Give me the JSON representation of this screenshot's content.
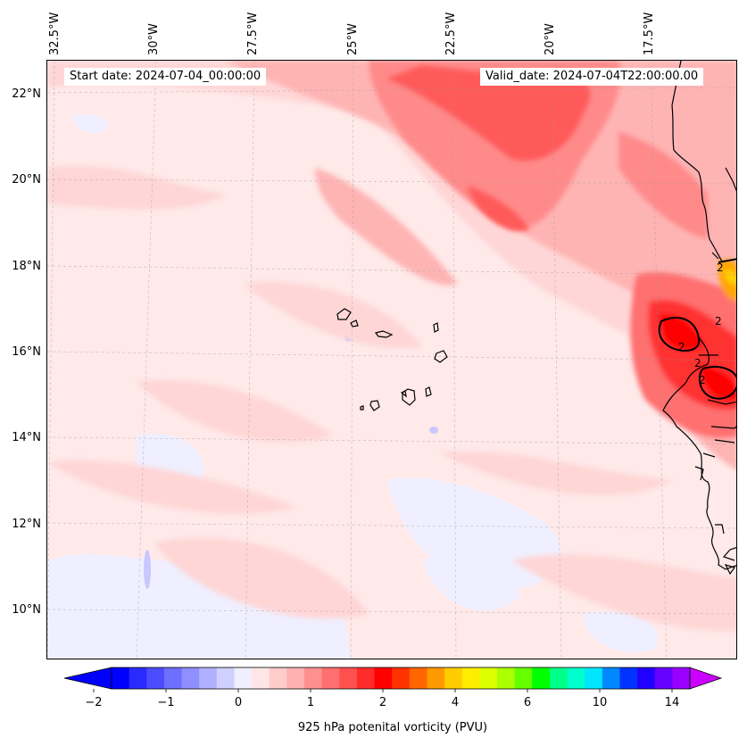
{
  "header": {
    "start_date": "Start date: 2024-07-04_00:00:00",
    "valid_date": "Valid_date: 2024-07-04T22:00:00.00"
  },
  "axes": {
    "lon_labels": [
      "32.5°W",
      "30°W",
      "27.5°W",
      "25°W",
      "22.5°W",
      "20°W",
      "17.5°W"
    ],
    "lat_labels": [
      "22°N",
      "20°N",
      "18°N",
      "16°N",
      "14°N",
      "12°N",
      "10°N"
    ]
  },
  "map": {
    "contour_labels": [
      "2",
      "2",
      "2",
      "2",
      "2"
    ],
    "background_color": "#ffe9e9",
    "coastline_color": "#000000"
  },
  "colorbar": {
    "tick_labels": [
      "−2",
      "−1",
      "0",
      "1",
      "2",
      "4",
      "6",
      "10",
      "14"
    ],
    "label": "925 hPa potenital vorticity (PVU)",
    "colors": [
      "#0000ff",
      "#2a2aff",
      "#4c4cff",
      "#6e6eff",
      "#8f8fff",
      "#b0b0ff",
      "#d0d0ff",
      "#efefff",
      "#ffe6e6",
      "#ffcccc",
      "#ffb0b0",
      "#ff9090",
      "#ff7070",
      "#ff5050",
      "#ff2c2c",
      "#ff0000",
      "#ff3300",
      "#ff6600",
      "#ff9900",
      "#ffcc00",
      "#ffee00",
      "#ddff00",
      "#aaff00",
      "#66ff00",
      "#00ff00",
      "#00ff88",
      "#00ffcc",
      "#00e6ff",
      "#0088ff",
      "#0033ff",
      "#2200ff",
      "#6600ff",
      "#9900ff"
    ],
    "under_color": "#0000ff",
    "over_color": "#cc00ff"
  }
}
